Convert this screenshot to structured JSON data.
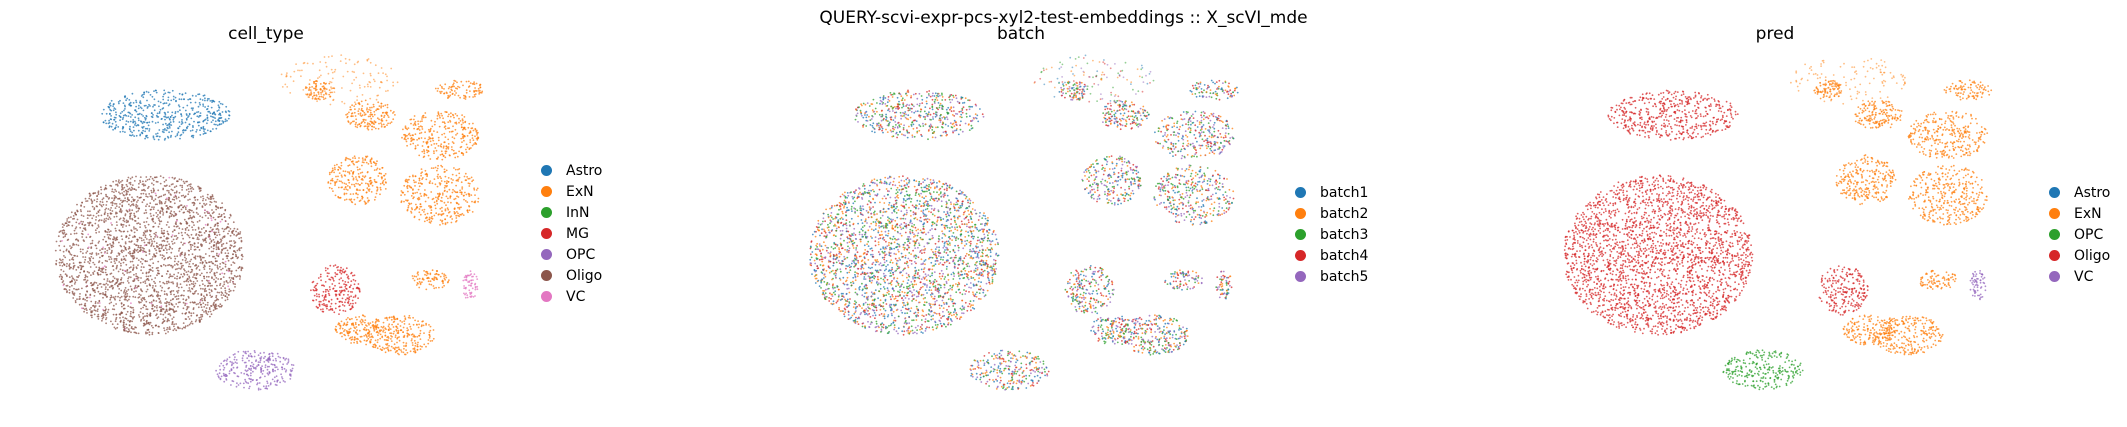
{
  "suptitle": "QUERY-scvi-expr-pcs-xyl2-test-embeddings :: X_scVI_mde",
  "chart_data": [
    {
      "type": "scatter",
      "title": "cell_type",
      "legend_placement": "right",
      "grid": false,
      "categories": [
        {
          "name": "Astro",
          "color": "#1f77b4"
        },
        {
          "name": "ExN",
          "color": "#ff7f0e"
        },
        {
          "name": "InN",
          "color": "#2ca02c"
        },
        {
          "name": "MG",
          "color": "#d62728"
        },
        {
          "name": "OPC",
          "color": "#9467bd"
        },
        {
          "name": "Oligo",
          "color": "#8c564b"
        },
        {
          "name": "VC",
          "color": "#e377c2"
        }
      ]
    },
    {
      "type": "scatter",
      "title": "batch",
      "legend_placement": "right",
      "grid": false,
      "categories": [
        {
          "name": "batch1",
          "color": "#1f77b4"
        },
        {
          "name": "batch2",
          "color": "#ff7f0e"
        },
        {
          "name": "batch3",
          "color": "#2ca02c"
        },
        {
          "name": "batch4",
          "color": "#d62728"
        },
        {
          "name": "batch5",
          "color": "#9467bd"
        }
      ]
    },
    {
      "type": "scatter",
      "title": "pred",
      "legend_placement": "right",
      "grid": false,
      "categories": [
        {
          "name": "Astro",
          "color": "#1f77b4"
        },
        {
          "name": "ExN",
          "color": "#ff7f0e"
        },
        {
          "name": "OPC",
          "color": "#2ca02c"
        },
        {
          "name": "Oligo",
          "color": "#d62728"
        },
        {
          "name": "VC",
          "color": "#9467bd"
        }
      ]
    }
  ]
}
